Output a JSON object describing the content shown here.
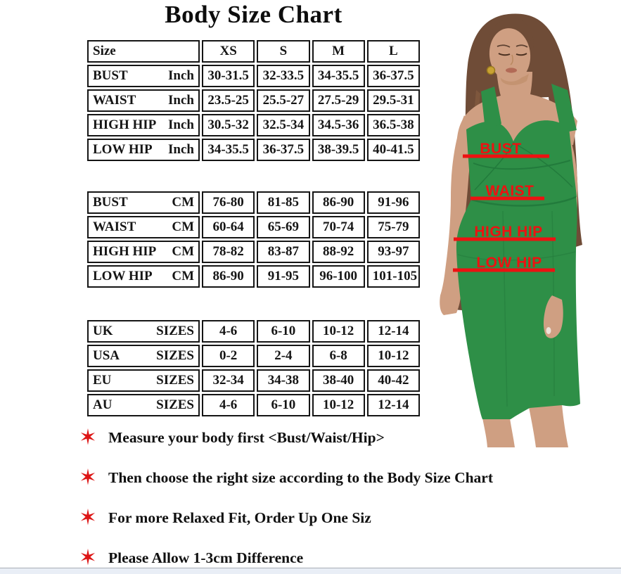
{
  "title": "Body Size Chart",
  "colors": {
    "accent_red": "#ee1111",
    "dress_green": "#2e8f47"
  },
  "icons": {
    "star_bullet": "✶"
  },
  "tables": [
    {
      "name": "inches",
      "header": {
        "label": "Size",
        "sizes": [
          "XS",
          "S",
          "M",
          "L"
        ]
      },
      "rows": [
        {
          "label": "BUST",
          "unit": "Inch",
          "values": [
            "30-31.5",
            "32-33.5",
            "34-35.5",
            "36-37.5"
          ]
        },
        {
          "label": "WAIST",
          "unit": "Inch",
          "values": [
            "23.5-25",
            "25.5-27",
            "27.5-29",
            "29.5-31"
          ]
        },
        {
          "label": "HIGH HIP",
          "unit": "Inch",
          "values": [
            "30.5-32",
            "32.5-34",
            "34.5-36",
            "36.5-38"
          ]
        },
        {
          "label": "LOW HIP",
          "unit": "Inch",
          "values": [
            "34-35.5",
            "36-37.5",
            "38-39.5",
            "40-41.5"
          ]
        }
      ]
    },
    {
      "name": "centimeters",
      "rows": [
        {
          "label": "BUST",
          "unit": "CM",
          "values": [
            "76-80",
            "81-85",
            "86-90",
            "91-96"
          ]
        },
        {
          "label": "WAIST",
          "unit": "CM",
          "values": [
            "60-64",
            "65-69",
            "70-74",
            "75-79"
          ]
        },
        {
          "label": "HIGH HIP",
          "unit": "CM",
          "values": [
            "78-82",
            "83-87",
            "88-92",
            "93-97"
          ]
        },
        {
          "label": "LOW HIP",
          "unit": "CM",
          "values": [
            "86-90",
            "91-95",
            "96-100",
            "101-105"
          ]
        }
      ]
    },
    {
      "name": "international-sizes",
      "rows": [
        {
          "label": "UK",
          "unit": "SIZES",
          "values": [
            "4-6",
            "6-10",
            "10-12",
            "12-14"
          ]
        },
        {
          "label": "USA",
          "unit": "SIZES",
          "values": [
            "0-2",
            "2-4",
            "6-8",
            "10-12"
          ]
        },
        {
          "label": "EU",
          "unit": "SIZES",
          "values": [
            "32-34",
            "34-38",
            "38-40",
            "40-42"
          ]
        },
        {
          "label": "AU",
          "unit": "SIZES",
          "values": [
            "4-6",
            "6-10",
            "10-12",
            "12-14"
          ]
        }
      ]
    }
  ],
  "figure_labels": {
    "bust": "BUST",
    "waist": "WAIST",
    "high_hip": "HIGH HIP",
    "low_hip": "LOW HIP"
  },
  "notes": [
    "Measure your body first <Bust/Waist/Hip>",
    "Then choose the right size according to the Body Size Chart",
    "For more Relaxed Fit, Order Up One Siz",
    "Please Allow 1-3cm Difference"
  ]
}
